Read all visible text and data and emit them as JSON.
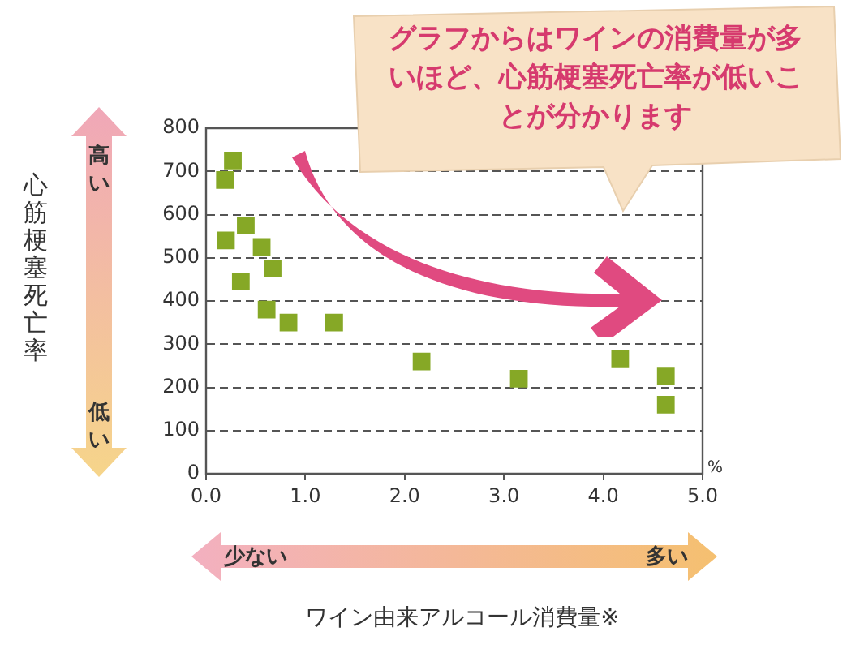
{
  "chart_data": {
    "type": "scatter",
    "xlabel": "ワイン由来アルコール消費量※",
    "ylabel": "心筋梗塞死亡率",
    "x": [
      0.19,
      0.27,
      0.2,
      0.4,
      0.56,
      0.67,
      0.35,
      0.61,
      0.83,
      1.29,
      2.17,
      3.15,
      4.17,
      4.63,
      4.63
    ],
    "series": [
      {
        "color": "#86a826",
        "values": [
          680,
          725,
          540,
          575,
          525,
          475,
          445,
          380,
          350,
          350,
          260,
          220,
          265,
          225,
          160
        ]
      }
    ],
    "xlim": [
      0,
      5
    ],
    "xticks": [
      {
        "value": 0,
        "label": "0.0"
      },
      {
        "value": 1,
        "label": "1.0"
      },
      {
        "value": 2,
        "label": "2.0"
      },
      {
        "value": 3,
        "label": "3.0"
      },
      {
        "value": 4,
        "label": "4.0"
      },
      {
        "value": 5,
        "label": "5.0"
      }
    ],
    "ylim": [
      0,
      800
    ],
    "yticks": [
      0,
      100,
      200,
      300,
      400,
      500,
      600,
      700,
      800
    ],
    "grid": "y",
    "legend": false,
    "marker": "square",
    "annotations": [
      "グラフからはワインの消費量が多いほど、心筋梗塞死亡率が低いことが分かります",
      "高い",
      "低い",
      "少ない",
      "多い",
      "%"
    ]
  }
}
